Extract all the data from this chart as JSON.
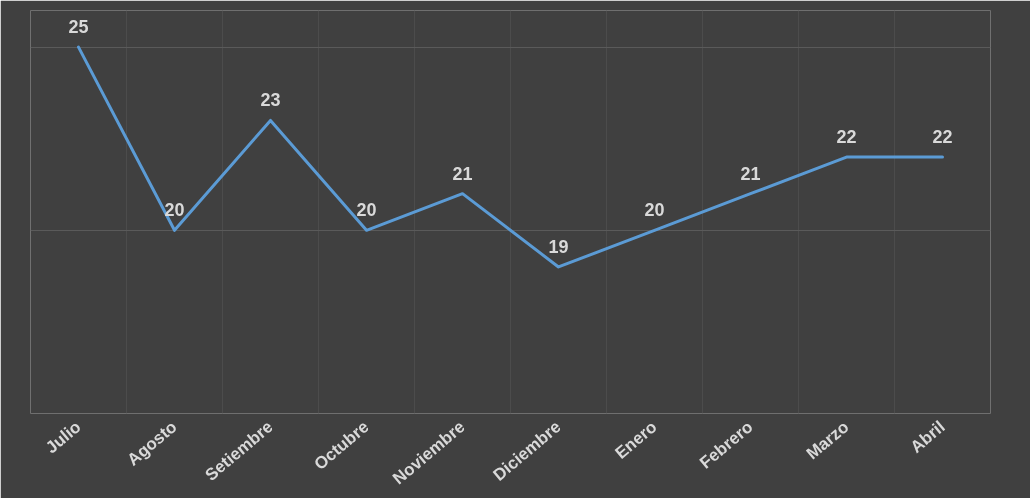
{
  "chart_data": {
    "type": "line",
    "categories": [
      "Julio",
      "Agosto",
      "Setiembre",
      "Octubre",
      "Noviembre",
      "Diciembre",
      "Enero",
      "Febrero",
      "Marzo",
      "Abril"
    ],
    "series": [
      {
        "color": "#5b9bd5",
        "values": [
          25,
          20,
          23,
          20,
          21,
          19,
          20,
          21,
          22,
          22
        ]
      }
    ],
    "ylim": [
      15,
      26
    ],
    "yticks": [
      {
        "value": 15,
        "label": null
      },
      {
        "value": 20,
        "label": null
      },
      {
        "value": 25,
        "label": null
      }
    ],
    "tick_labels": "x",
    "grid": true,
    "data_labels": true,
    "marker": "none",
    "line_style": "solid"
  }
}
